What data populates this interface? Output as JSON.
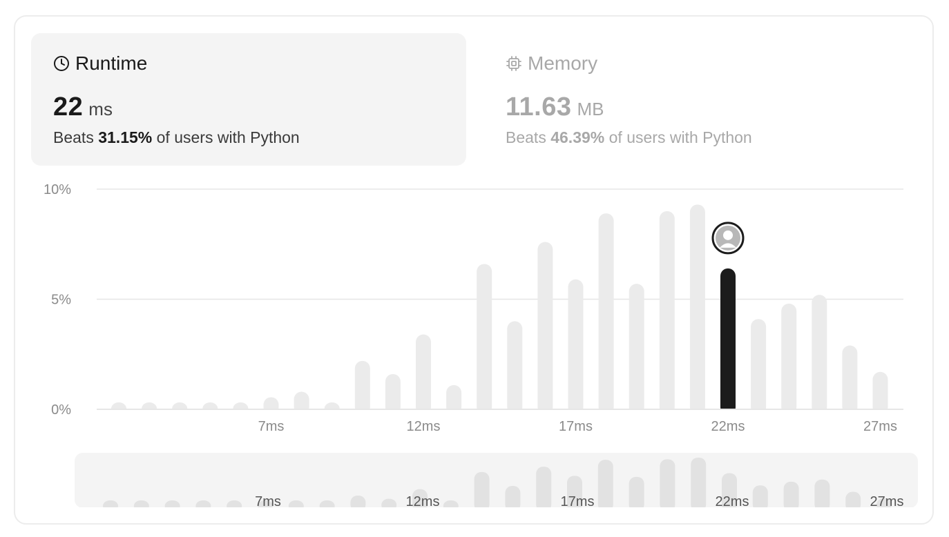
{
  "runtime_panel": {
    "title": "Runtime",
    "value": "22",
    "unit": "ms",
    "beats_prefix": "Beats",
    "beats_value": "31.15%",
    "beats_suffix": "of users with Python",
    "icon": "clock-icon"
  },
  "memory_panel": {
    "title": "Memory",
    "value": "11.63",
    "unit": "MB",
    "beats_prefix": "Beats",
    "beats_value": "46.39%",
    "beats_suffix": "of users with Python",
    "icon": "chip-icon"
  },
  "chart_data": {
    "type": "bar",
    "x": [
      2,
      3,
      4,
      5,
      6,
      7,
      8,
      9,
      10,
      11,
      12,
      13,
      14,
      15,
      16,
      17,
      18,
      19,
      20,
      21,
      22,
      23,
      24,
      25,
      26,
      27
    ],
    "values": [
      0.3,
      0.3,
      0.3,
      0.3,
      0.3,
      0.55,
      0.8,
      0.3,
      2.2,
      1.6,
      3.4,
      1.1,
      6.6,
      4.0,
      7.6,
      5.9,
      8.9,
      5.7,
      9.0,
      9.3,
      6.4,
      4.1,
      4.8,
      5.2,
      2.9,
      1.7
    ],
    "highlight_x": 22,
    "xticks": [
      7,
      12,
      17,
      22,
      27
    ],
    "xtick_labels": [
      "7ms",
      "12ms",
      "17ms",
      "22ms",
      "27ms"
    ],
    "yticks": [
      0,
      5,
      10
    ],
    "ytick_labels": [
      "0%",
      "5%",
      "10%"
    ],
    "ylim": [
      0,
      10
    ],
    "grid": true,
    "colors": {
      "bar": "#ebebeb",
      "highlight": "#1c1c1c",
      "brush_bar": "#e2e2e2",
      "brush_bg": "#f4f4f4",
      "grid": "#e6e6e6"
    },
    "avatar_icon": "user-avatar-icon"
  }
}
